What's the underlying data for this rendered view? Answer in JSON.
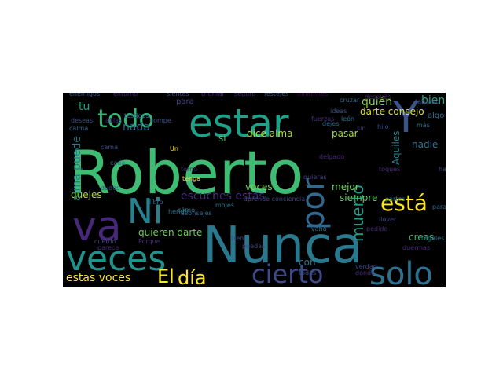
{
  "words": [
    {
      "text": "Roberto",
      "color": "#3fbc73",
      "rotate": false
    },
    {
      "text": "Nunca",
      "color": "#2a788e",
      "rotate": false
    },
    {
      "text": "estar",
      "color": "#1fa088",
      "rotate": false
    },
    {
      "text": "todo",
      "color": "#35b779",
      "rotate": false
    },
    {
      "text": "Y",
      "color": "#3b528b",
      "rotate": false
    },
    {
      "text": "va",
      "color": "#482878",
      "rotate": false
    },
    {
      "text": "Ni",
      "color": "#26828e",
      "rotate": false
    },
    {
      "text": "veces",
      "color": "#21918c",
      "rotate": false
    },
    {
      "text": "por",
      "color": "#31688e",
      "rotate": true
    },
    {
      "text": "está",
      "color": "#fde725",
      "rotate": false
    },
    {
      "text": "cierto",
      "color": "#3e4a89",
      "rotate": false
    },
    {
      "text": "solo",
      "color": "#2c728e",
      "rotate": false
    },
    {
      "text": "El",
      "color": "#fde725",
      "rotate": false
    },
    {
      "text": "día",
      "color": "#fde725",
      "rotate": false
    },
    {
      "text": "estas voces",
      "color": "#fde725",
      "rotate": false
    },
    {
      "text": "escuches estas",
      "color": "#472d7b",
      "rotate": false
    },
    {
      "text": "muerto",
      "color": "#1f9e89",
      "rotate": true
    },
    {
      "text": "quejes",
      "color": "#addc30",
      "rotate": false
    },
    {
      "text": "dice alma",
      "color": "#b5de2b",
      "rotate": false
    },
    {
      "text": "darte consejo",
      "color": "#d8e219",
      "rotate": false
    },
    {
      "text": "quieren darte",
      "color": "#6ece58",
      "rotate": false
    },
    {
      "text": "alma puede",
      "color": "#2a788e",
      "rotate": true
    },
    {
      "text": "bien",
      "color": "#22a884",
      "rotate": false
    },
    {
      "text": "quién",
      "color": "#84d44b",
      "rotate": false
    },
    {
      "text": "nada",
      "color": "#31688e",
      "rotate": false
    },
    {
      "text": "nadie",
      "color": "#2c728e",
      "rotate": false
    },
    {
      "text": "tu",
      "color": "#1fa088",
      "rotate": false
    },
    {
      "text": "si",
      "color": "#52c569",
      "rotate": false
    },
    {
      "text": "voces",
      "color": "#7ad151",
      "rotate": false
    },
    {
      "text": "pasar",
      "color": "#a0da39",
      "rotate": false
    },
    {
      "text": "mejor",
      "color": "#6ece58",
      "rotate": false
    },
    {
      "text": "siempre",
      "color": "#5ec962",
      "rotate": false
    },
    {
      "text": "creas",
      "color": "#35b779",
      "rotate": false
    },
    {
      "text": "con",
      "color": "#2a788e",
      "rotate": false
    },
    {
      "text": "Aquiles",
      "color": "#26828e",
      "rotate": true
    },
    {
      "text": "para",
      "color": "#414487",
      "rotate": false
    },
    {
      "text": "algo",
      "color": "#31688e",
      "rotate": false
    },
    {
      "text": "más",
      "color": "#2c728e",
      "rotate": false
    },
    {
      "text": "hay",
      "color": "#3e4a89",
      "rotate": false
    },
    {
      "text": "duermas",
      "color": "#472d7b",
      "rotate": false
    },
    {
      "text": "vano",
      "color": "#2a788e",
      "rotate": false
    },
    {
      "text": "deseas",
      "color": "#3e4a89",
      "rotate": false
    },
    {
      "text": "afilas",
      "color": "#482878",
      "rotate": false
    },
    {
      "text": "rompe",
      "color": "#3b528b",
      "rotate": false
    },
    {
      "text": "calma",
      "color": "#31688e",
      "rotate": false
    },
    {
      "text": "testigos",
      "color": "#2c728e",
      "rotate": false
    },
    {
      "text": "tenga",
      "color": "#fde725",
      "rotate": false
    },
    {
      "text": "torno",
      "color": "#482878",
      "rotate": false
    },
    {
      "text": "cómo",
      "color": "#2a788e",
      "rotate": false
    },
    {
      "text": "ideas",
      "color": "#3b528b",
      "rotate": false
    },
    {
      "text": "fuerzas",
      "color": "#472d7b",
      "rotate": false
    },
    {
      "text": "cruzar",
      "color": "#31688e",
      "rotate": false
    },
    {
      "text": "después",
      "color": "#482878",
      "rotate": false
    },
    {
      "text": "festejes",
      "color": "#3b528b",
      "rotate": false
    },
    {
      "text": "tatuado",
      "color": "#3e4a89",
      "rotate": false
    },
    {
      "text": "seguro",
      "color": "#482878",
      "rotate": false
    },
    {
      "text": "triunfar",
      "color": "#472d7b",
      "rotate": false
    },
    {
      "text": "sientas",
      "color": "#414487",
      "rotate": false
    },
    {
      "text": "entorno",
      "color": "#482878",
      "rotate": false
    },
    {
      "text": "enemigos",
      "color": "#3b528b",
      "rotate": false
    },
    {
      "text": "dinamites",
      "color": "#440154",
      "rotate": false
    },
    {
      "text": "aconsejes",
      "color": "#31688e",
      "rotate": false
    },
    {
      "text": "mojes",
      "color": "#2c728e",
      "rotate": false
    },
    {
      "text": "aprende conciencia",
      "color": "#414487",
      "rotate": false
    },
    {
      "text": "tren",
      "color": "#3e4a89",
      "rotate": false
    },
    {
      "text": "león",
      "color": "#2a788e",
      "rotate": false
    },
    {
      "text": "sin",
      "color": "#472d7b",
      "rotate": false
    },
    {
      "text": "hilo",
      "color": "#3b528b",
      "rotate": false
    },
    {
      "text": "paraguas",
      "color": "#31688e",
      "rotate": false
    },
    {
      "text": "regales",
      "color": "#2c728e",
      "rotate": false
    },
    {
      "text": "partes",
      "color": "#26828e",
      "rotate": false
    },
    {
      "text": "verdad",
      "color": "#3e4a89",
      "rotate": false
    },
    {
      "text": "donde",
      "color": "#472d7b",
      "rotate": false
    },
    {
      "text": "pedido",
      "color": "#482878",
      "rotate": false
    },
    {
      "text": "llover",
      "color": "#414487",
      "rotate": false
    },
    {
      "text": "dudes",
      "color": "#3b528b",
      "rotate": false
    },
    {
      "text": "libro",
      "color": "#31688e",
      "rotate": false
    },
    {
      "text": "herido",
      "color": "#2c728e",
      "rotate": false
    },
    {
      "text": "cuerdo",
      "color": "#3e4a89",
      "rotate": false
    },
    {
      "text": "Porque",
      "color": "#472d7b",
      "rotate": false
    },
    {
      "text": "parece",
      "color": "#482878",
      "rotate": false
    },
    {
      "text": "puedas",
      "color": "#414487",
      "rotate": false
    },
    {
      "text": "todas",
      "color": "#3b528b",
      "rotate": false
    },
    {
      "text": "dejes",
      "color": "#31688e",
      "rotate": false
    },
    {
      "text": "Un",
      "color": "#fde725",
      "rotate": false
    },
    {
      "text": "cada",
      "color": "#2c728e",
      "rotate": false
    },
    {
      "text": "cama",
      "color": "#3e4a89",
      "rotate": false
    },
    {
      "text": "toques",
      "color": "#472d7b",
      "rotate": false
    },
    {
      "text": "delgado",
      "color": "#482878",
      "rotate": false
    },
    {
      "text": "quieras",
      "color": "#414487",
      "rotate": false
    }
  ]
}
